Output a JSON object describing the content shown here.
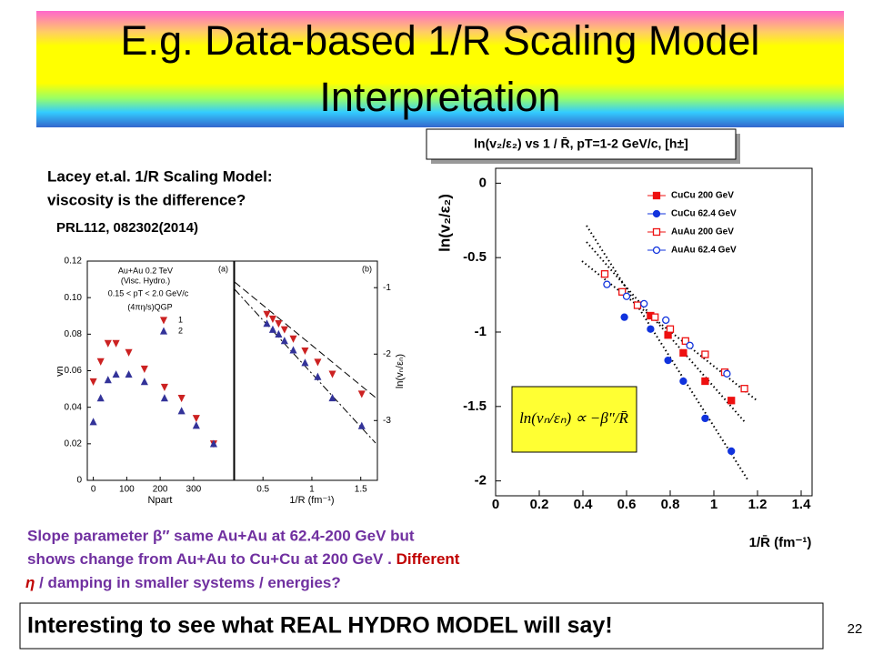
{
  "title": [
    "E.g. Data-based 1/R Scaling Model",
    "Interpretation"
  ],
  "citation": {
    "lines": [
      "Lacey et.al. 1/R Scaling Model:",
      "viscosity is the difference?"
    ],
    "reference": "PRL112, 082302(2014)"
  },
  "summary": [
    [
      "Slope parameter β″  same Au+Au at 62.4-200 GeV  but"
    ],
    [
      "shows change from Au+Au to Cu+Cu at 200 GeV .  ",
      "Different"
    ],
    [
      "η",
      "  / damping in smaller systems / energies?"
    ]
  ],
  "callout": "Interesting to see what REAL HYDRO MODEL will say!",
  "page_number": "22",
  "left_chart": {
    "type": "scatter",
    "panels": [
      {
        "tag": "(a)",
        "xlabel": "Npart",
        "ylabel": "vn",
        "annotations": [
          "Au+Au 0.2 TeV",
          "(Visc. Hydro.)",
          "0.15 < pT < 2.0 GeV/c"
        ],
        "legend_title": "(4πη/s)QGP",
        "xlim": [
          -18,
          420
        ],
        "ylim": [
          0,
          0.12
        ],
        "xticks": [
          0,
          100,
          200,
          300
        ],
        "yticks": [
          0,
          0.02,
          0.04,
          0.06,
          0.08,
          {
            "value": 0.1,
            "label": "0.10"
          },
          0.12
        ],
        "series": [
          {
            "name": "1",
            "color": "#cc2222",
            "marker": "triangle-down",
            "filled": true,
            "x": [
              0,
              22,
              44,
              68,
              106,
              153,
              213,
              264,
              308,
              360
            ],
            "values": [
              0.054,
              0.065,
              0.075,
              0.075,
              0.07,
              0.061,
              0.051,
              0.045,
              0.034,
              0.02
            ]
          },
          {
            "name": "2",
            "color": "#333399",
            "marker": "triangle-up",
            "filled": true,
            "x": [
              0,
              22,
              44,
              68,
              106,
              153,
              213,
              264,
              308,
              360
            ],
            "values": [
              0.032,
              0.045,
              0.055,
              0.058,
              0.058,
              0.054,
              0.045,
              0.038,
              0.03,
              0.02
            ]
          }
        ]
      },
      {
        "tag": "(b)",
        "xlabel": "1/R (fm⁻¹)",
        "ylabel": "ln(vₙ/εₙ)",
        "xlim": [
          0.21,
          1.67
        ],
        "ylim": [
          -3.9,
          -0.6
        ],
        "xticks": [
          0.5,
          1,
          1.5
        ],
        "yticks": [
          -1,
          -2,
          -3
        ],
        "series": [
          {
            "color": "#cc2222",
            "marker": "triangle-down",
            "filled": true,
            "x": [
              0.54,
              0.6,
              0.66,
              0.72,
              0.81,
              0.93,
              1.06,
              1.21,
              1.51
            ],
            "values": [
              -1.4,
              -1.47,
              -1.54,
              -1.63,
              -1.77,
              -1.95,
              -2.12,
              -2.3,
              -2.6
            ]
          },
          {
            "color": "#333399",
            "marker": "triangle-up",
            "filled": true,
            "x": [
              0.54,
              0.6,
              0.66,
              0.72,
              0.81,
              0.93,
              1.06,
              1.21,
              1.51
            ],
            "values": [
              -1.54,
              -1.63,
              -1.7,
              -1.8,
              -1.94,
              -2.13,
              -2.34,
              -2.66,
              -3.08
            ]
          }
        ]
      }
    ]
  },
  "right_chart": {
    "type": "scatter",
    "title": "ln(v₂/ε₂)  vs 1 / R̄, pT=1-2 GeV/c, [h±]",
    "xlabel": "1/R̄ (fm⁻¹)",
    "ylabel": "ln(v₂/ε₂)",
    "equation": "ln(vₙ/εₙ) ∝ −β″/R̄",
    "xlim": [
      0,
      1.45
    ],
    "ylim": [
      -2.1,
      0.1
    ],
    "xticks": [
      0,
      0.2,
      0.4,
      0.6,
      0.8,
      1,
      1.2,
      1.4
    ],
    "yticks": [
      0,
      -0.5,
      -1,
      -1.5,
      -2
    ],
    "series": [
      {
        "name": "CuCu 200 GeV",
        "color": "#ee1111",
        "marker": "square",
        "filled": true,
        "x": [
          0.71,
          0.79,
          0.86,
          0.96,
          1.08
        ],
        "values": [
          -0.89,
          -1.02,
          -1.14,
          -1.33,
          -1.46
        ]
      },
      {
        "name": "CuCu 62.4 GeV",
        "color": "#1133dd",
        "marker": "circle",
        "filled": true,
        "x": [
          0.59,
          0.71,
          0.79,
          0.86,
          0.96,
          1.08
        ],
        "values": [
          -0.9,
          -0.98,
          -1.19,
          -1.33,
          -1.58,
          -1.8
        ]
      },
      {
        "name": "AuAu 200 GeV",
        "color": "#ee1111",
        "marker": "square",
        "filled": false,
        "x": [
          0.5,
          0.58,
          0.65,
          0.73,
          0.8,
          0.87,
          0.96,
          1.05,
          1.14
        ],
        "values": [
          -0.61,
          -0.73,
          -0.82,
          -0.9,
          -0.98,
          -1.06,
          -1.15,
          -1.27,
          -1.38
        ]
      },
      {
        "name": "AuAu 62.4 GeV",
        "color": "#1133dd",
        "marker": "circle",
        "filled": false,
        "x": [
          0.51,
          0.6,
          0.68,
          0.78,
          0.89,
          1.06
        ],
        "values": [
          -0.68,
          -0.76,
          -0.81,
          -0.92,
          -1.09,
          -1.28
        ]
      }
    ]
  }
}
